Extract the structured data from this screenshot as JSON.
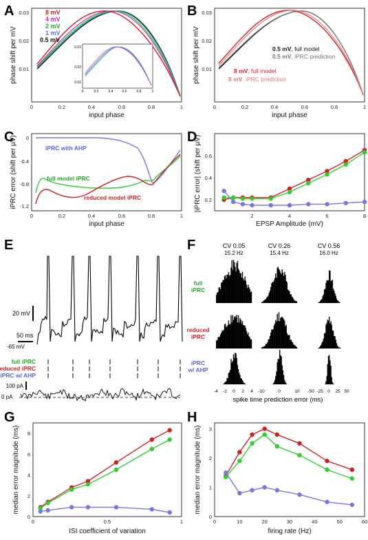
{
  "panels": {
    "A": "A",
    "B": "B",
    "C": "C",
    "D": "D",
    "E": "E",
    "F": "F",
    "G": "G",
    "H": "H"
  },
  "colors": {
    "red": "#cc2222",
    "green": "#33cc33",
    "blue": "#7777dd",
    "magenta": "#cc22cc",
    "teal": "#22aaaa",
    "black": "#111111",
    "gray": "#777777",
    "pink": "#ee6666",
    "lightblue": "#8888dd"
  },
  "panelA": {
    "ylabel": "phase shift per mV",
    "xlabel": "input phase",
    "yticks": [
      "0.01",
      "0.02",
      "0.03"
    ],
    "xticks": [
      "0",
      "0.2",
      "0.4",
      "0.6",
      "0.8",
      "1"
    ],
    "legend": [
      {
        "label": "8 mV",
        "color": "#cc2222"
      },
      {
        "label": "4 mV",
        "color": "#cc22cc"
      },
      {
        "label": "2 mV",
        "color": "#22aa22"
      },
      {
        "label": "1 mV",
        "color": "#5577cc"
      },
      {
        "label": "0.5 mV",
        "color": "#111111"
      }
    ],
    "inset": {
      "yticks": [
        "0.01",
        "0.02",
        "0.03"
      ],
      "xticks": [
        "0",
        "0.2",
        "0.4",
        "0.6",
        "0.8",
        "1"
      ]
    }
  },
  "panelB": {
    "ylabel": "phase shift per mV",
    "xlabel": "input phase",
    "yticks": [
      "0.01",
      "0.02",
      "0.03"
    ],
    "xticks": [
      "0",
      "0.2",
      "0.4",
      "0.6",
      "0.8",
      "1"
    ],
    "legend": [
      {
        "bold": "0.5 mV",
        "rest": ", full model",
        "color": "#111111"
      },
      {
        "bold": "0.5 mV",
        "rest": ", iPRC prediction",
        "color": "#777777"
      },
      {
        "bold": "8 mV",
        "rest": ", full model",
        "color": "#cc2222"
      },
      {
        "bold": "8 mV",
        "rest": ", iPRC prediction",
        "color": "#ee7777"
      }
    ]
  },
  "panelC": {
    "ylabel": "iPRC error (shift per µV)",
    "xlabel": "input phase",
    "yticks": [
      "0",
      "-0.4",
      "-0.8",
      "-1.2"
    ],
    "xticks": [
      "0",
      "0.2",
      "0.4",
      "0.6",
      "0.8",
      "1"
    ],
    "labels": {
      "ahp": "iPRC with AHP",
      "full": "full model iPRC",
      "reduced": "reduced model iPRC"
    }
  },
  "panelD": {
    "ylabel": "|iPRC error| (shift per µV)",
    "xlabel": "EPSP Amplitude (mV)",
    "yticks": [
      "0.2",
      "0.4",
      "0.6"
    ],
    "xticks": [
      "2",
      "4",
      "6",
      "8"
    ]
  },
  "panelE": {
    "scale_mv": "20 mV",
    "scale_ms": "50 ms",
    "rest": "-65 mV",
    "rows": [
      {
        "label": "full iPRC",
        "color": "#33cc33"
      },
      {
        "label": "reduced iPRC",
        "color": "#cc2222"
      },
      {
        "label": "iPRC w/ AHP",
        "color": "#7777dd"
      }
    ],
    "current_scale": "100 pA",
    "zero": "0 pA"
  },
  "panelF": {
    "cols": [
      {
        "cv": "CV 0.05",
        "hz": "15.2 Hz"
      },
      {
        "cv": "CV 0.26",
        "hz": "15.4 Hz"
      },
      {
        "cv": "CV 0.56",
        "hz": "16.0 Hz"
      }
    ],
    "rows": [
      {
        "l1": "full",
        "l2": "iPRC",
        "color": "#33cc33"
      },
      {
        "l1": "reduced",
        "l2": "iPRC",
        "color": "#cc2222"
      },
      {
        "l1": "iPRC",
        "l2": "w/ AHP",
        "color": "#7777dd"
      }
    ],
    "xticks": [
      [
        "-4",
        "-2",
        "0",
        "2",
        "4"
      ],
      [
        "-10",
        "0",
        "10"
      ],
      [
        "-50",
        "-25",
        "0",
        "25",
        "50"
      ]
    ],
    "xlabel": "spike time prediction error (ms)"
  },
  "panelG": {
    "ylabel": "median error magnitude (ms)",
    "xlabel": "ISI coefficient of variation",
    "yticks": [
      "0",
      "2",
      "4",
      "6",
      "8"
    ],
    "xticks": [
      "0",
      "0.5",
      "1"
    ]
  },
  "panelH": {
    "ylabel": "median error magnitude (ms)",
    "xlabel": "firing rate (Hz)",
    "yticks": [
      "0",
      "1",
      "2",
      "3"
    ],
    "xticks": [
      "0",
      "10",
      "20",
      "30",
      "40",
      "50",
      "60"
    ]
  },
  "chart_data": [
    {
      "panel": "D",
      "type": "line",
      "xlabel": "EPSP Amplitude (mV)",
      "ylabel": "|iPRC error| (shift per µV)",
      "xlim": [
        0,
        8
      ],
      "ylim": [
        0.1,
        0.8
      ],
      "x": [
        0.5,
        1,
        1.5,
        2,
        3,
        4,
        5,
        6,
        7,
        8
      ],
      "series": [
        {
          "values": [
            0.2,
            0.22,
            0.22,
            0.22,
            0.22,
            0.3,
            0.38,
            0.46,
            0.55,
            0.65
          ],
          "color": "#cc2222"
        },
        {
          "values": [
            0.22,
            0.22,
            0.21,
            0.21,
            0.21,
            0.27,
            0.35,
            0.43,
            0.52,
            0.63
          ],
          "color": "#33cc33"
        },
        {
          "values": [
            0.28,
            0.18,
            0.16,
            0.15,
            0.15,
            0.15,
            0.16,
            0.16,
            0.17,
            0.18
          ],
          "color": "#7777dd"
        }
      ]
    },
    {
      "panel": "G",
      "type": "line",
      "xlabel": "ISI coefficient of variation",
      "ylabel": "median error magnitude (ms)",
      "xlim": [
        0,
        1
      ],
      "ylim": [
        0,
        9
      ],
      "x": [
        0.05,
        0.1,
        0.26,
        0.37,
        0.56,
        0.8,
        0.92
      ],
      "series": [
        {
          "values": [
            0.9,
            1.4,
            2.8,
            3.4,
            5.2,
            7.4,
            8.3
          ],
          "color": "#cc2222"
        },
        {
          "values": [
            0.8,
            1.3,
            2.6,
            3.1,
            4.5,
            6.5,
            7.4
          ],
          "color": "#33cc33"
        },
        {
          "values": [
            0.5,
            0.6,
            0.9,
            0.9,
            0.9,
            0.7,
            0.4
          ],
          "color": "#7777dd"
        }
      ]
    },
    {
      "panel": "H",
      "type": "line",
      "xlabel": "firing rate (Hz)",
      "ylabel": "median error magnitude (ms)",
      "xlim": [
        0,
        60
      ],
      "ylim": [
        0,
        3.2
      ],
      "series": [
        {
          "x": [
            4.5,
            10,
            15,
            20,
            25,
            34,
            45,
            55
          ],
          "values": [
            1.4,
            2.2,
            2.8,
            3.0,
            2.8,
            2.5,
            1.9,
            1.6
          ],
          "color": "#cc2222"
        },
        {
          "x": [
            4.5,
            10,
            15,
            20,
            25,
            34,
            45,
            55
          ],
          "values": [
            1.35,
            1.9,
            2.5,
            2.8,
            2.4,
            2.1,
            1.6,
            1.3
          ],
          "color": "#33cc33"
        },
        {
          "x": [
            4.5,
            10,
            15,
            20,
            25,
            34,
            45,
            55
          ],
          "values": [
            1.5,
            0.8,
            0.9,
            1.0,
            0.9,
            0.75,
            0.5,
            0.4
          ],
          "color": "#7777dd"
        }
      ]
    }
  ]
}
